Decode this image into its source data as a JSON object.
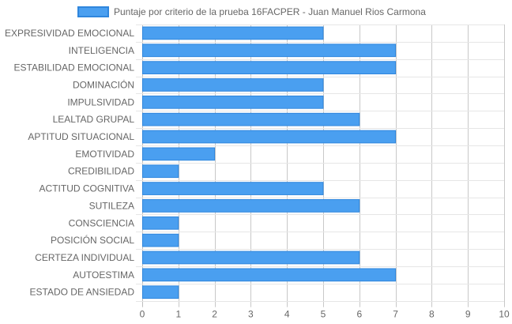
{
  "chart_data": {
    "type": "bar",
    "orientation": "horizontal",
    "categories": [
      "EXPRESIVIDAD EMOCIONAL",
      "INTELIGENCIA",
      "ESTABILIDAD EMOCIONAL",
      "DOMINACIÓN",
      "IMPULSIVIDAD",
      "LEALTAD GRUPAL",
      "APTITUD SITUACIONAL",
      "EMOTIVIDAD",
      "CREDIBILIDAD",
      "ACTITUD COGNITIVA",
      "SUTILEZA",
      "CONSCIENCIA",
      "POSICIÓN SOCIAL",
      "CERTEZA INDIVIDUAL",
      "AUTOESTIMA",
      "ESTADO DE ANSIEDAD"
    ],
    "series": [
      {
        "name": "Puntaje por criterio de la prueba 16FACPER - Juan Manuel Rios Carmona",
        "values": [
          5,
          7,
          7,
          5,
          5,
          6,
          7,
          2,
          1,
          5,
          6,
          1,
          1,
          6,
          7,
          1
        ],
        "color": "#4a9ff0",
        "border_color": "#2f86dd"
      }
    ],
    "xlim": [
      0,
      10
    ],
    "xticks": [
      "0",
      "1",
      "2",
      "3",
      "4",
      "5",
      "6",
      "7",
      "8",
      "9",
      "10"
    ],
    "grid": true,
    "legend_position": "top"
  }
}
